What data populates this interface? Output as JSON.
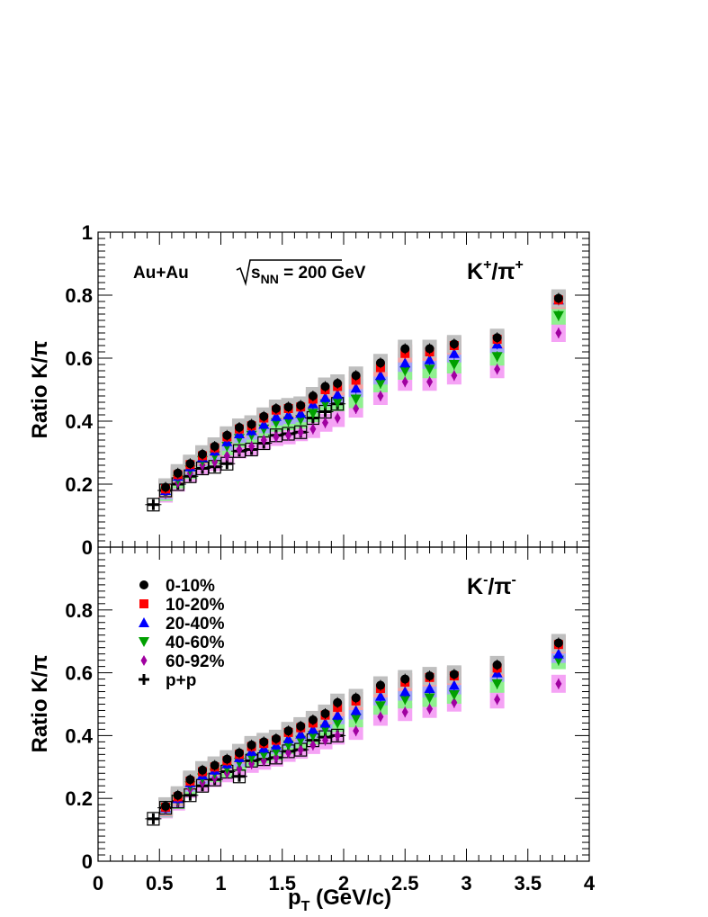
{
  "chart_data": [
    {
      "type": "scatter",
      "panel": "top",
      "ratio_label": {
        "base": "K",
        "sup1": "+",
        "sep": "/π",
        "sup2": "+"
      },
      "system_label": {
        "pre": "Au+Au ",
        "sqrt": "s",
        "sub": "NN",
        "post": " = 200 GeV"
      },
      "ylabel": "Ratio K/π",
      "xlim": [
        0,
        4
      ],
      "ylim": [
        0,
        1
      ],
      "yticks": [
        "0",
        "0.2",
        "0.4",
        "0.6",
        "0.8",
        "1"
      ],
      "x": [
        0.55,
        0.65,
        0.75,
        0.85,
        0.95,
        1.05,
        1.15,
        1.25,
        1.35,
        1.45,
        1.55,
        1.65,
        1.75,
        1.85,
        1.95,
        2.1,
        2.3,
        2.5,
        2.7,
        2.9,
        3.25,
        3.75
      ],
      "series": [
        {
          "name": "0-10%",
          "color": "#000000",
          "marker": "circle",
          "values": [
            0.19,
            0.235,
            0.265,
            0.295,
            0.32,
            0.355,
            0.38,
            0.39,
            0.415,
            0.44,
            0.445,
            0.45,
            0.48,
            0.51,
            0.52,
            0.545,
            0.585,
            0.63,
            0.63,
            0.645,
            0.665,
            0.79
          ]
        },
        {
          "name": "10-20%",
          "color": "#ff0000",
          "marker": "square",
          "values": [
            0.185,
            0.23,
            0.262,
            0.29,
            0.315,
            0.35,
            0.375,
            0.385,
            0.41,
            0.435,
            0.44,
            0.445,
            0.47,
            0.5,
            0.51,
            0.53,
            0.57,
            0.615,
            0.62,
            0.64,
            0.66,
            0.785
          ]
        },
        {
          "name": "20-40%",
          "color": "#0000ff",
          "marker": "triangle-up",
          "values": [
            0.18,
            0.225,
            0.255,
            0.285,
            0.305,
            0.335,
            0.36,
            0.37,
            0.39,
            0.415,
            0.42,
            0.425,
            0.455,
            0.475,
            0.485,
            0.505,
            0.545,
            0.585,
            0.595,
            0.615,
            0.645,
            0.785
          ]
        },
        {
          "name": "40-60%",
          "color": "#00a000",
          "marker": "triangle-down",
          "values": [
            0.175,
            0.215,
            0.245,
            0.275,
            0.29,
            0.32,
            0.345,
            0.355,
            0.375,
            0.395,
            0.4,
            0.405,
            0.425,
            0.455,
            0.46,
            0.47,
            0.52,
            0.56,
            0.565,
            0.58,
            0.605,
            0.735
          ]
        },
        {
          "name": "60-92%",
          "color": "#a000a0",
          "marker": "diamond",
          "values": [
            0.17,
            0.205,
            0.235,
            0.26,
            0.27,
            0.29,
            0.31,
            0.32,
            0.34,
            0.35,
            0.355,
            0.365,
            0.375,
            0.395,
            0.41,
            0.44,
            0.48,
            0.525,
            0.525,
            0.545,
            0.565,
            0.68
          ]
        }
      ],
      "pp": {
        "name": "p+p",
        "x": [
          0.45,
          0.55,
          0.65,
          0.75,
          0.85,
          0.95,
          1.05,
          1.15,
          1.25,
          1.35,
          1.45,
          1.55,
          1.65,
          1.75,
          1.85,
          1.95
        ],
        "values": [
          0.135,
          0.18,
          0.2,
          0.225,
          0.25,
          0.255,
          0.265,
          0.305,
          0.31,
          0.33,
          0.355,
          0.36,
          0.365,
          0.41,
          0.43,
          0.455
        ]
      }
    },
    {
      "type": "scatter",
      "panel": "bottom",
      "ratio_label": {
        "base": "K",
        "sup1": "-",
        "sep": "/π",
        "sup2": "-"
      },
      "ylabel": "Ratio K/π",
      "xlabel": {
        "main": "p",
        "sub": "T",
        "post": " (GeV/c)"
      },
      "xlim": [
        0,
        4
      ],
      "ylim": [
        0,
        1
      ],
      "xticks": [
        "0",
        "0.5",
        "1",
        "1.5",
        "2",
        "2.5",
        "3",
        "3.5",
        "4"
      ],
      "yticks": [
        "0",
        "0.2",
        "0.4",
        "0.6",
        "0.8"
      ],
      "legend": {
        "position": "top-left",
        "entries": [
          "0-10%",
          "10-20%",
          "20-40%",
          "40-60%",
          "60-92%",
          "p+p"
        ]
      },
      "x": [
        0.55,
        0.65,
        0.75,
        0.85,
        0.95,
        1.05,
        1.15,
        1.25,
        1.35,
        1.45,
        1.55,
        1.65,
        1.75,
        1.85,
        1.95,
        2.1,
        2.3,
        2.5,
        2.7,
        2.9,
        3.25,
        3.75
      ],
      "series": [
        {
          "name": "0-10%",
          "color": "#000000",
          "marker": "circle",
          "values": [
            0.175,
            0.21,
            0.26,
            0.29,
            0.305,
            0.325,
            0.345,
            0.37,
            0.38,
            0.39,
            0.415,
            0.43,
            0.45,
            0.47,
            0.505,
            0.52,
            0.56,
            0.58,
            0.59,
            0.595,
            0.625,
            0.695
          ]
        },
        {
          "name": "10-20%",
          "color": "#ff0000",
          "marker": "square",
          "values": [
            0.172,
            0.205,
            0.255,
            0.285,
            0.3,
            0.32,
            0.34,
            0.365,
            0.375,
            0.385,
            0.41,
            0.425,
            0.44,
            0.465,
            0.49,
            0.51,
            0.55,
            0.57,
            0.585,
            0.59,
            0.615,
            0.69
          ]
        },
        {
          "name": "20-40%",
          "color": "#0000ff",
          "marker": "triangle-up",
          "values": [
            0.17,
            0.2,
            0.25,
            0.275,
            0.29,
            0.31,
            0.33,
            0.35,
            0.36,
            0.37,
            0.39,
            0.405,
            0.42,
            0.44,
            0.465,
            0.48,
            0.525,
            0.54,
            0.55,
            0.56,
            0.6,
            0.66
          ]
        },
        {
          "name": "40-60%",
          "color": "#00a000",
          "marker": "triangle-down",
          "values": [
            0.168,
            0.195,
            0.24,
            0.265,
            0.28,
            0.295,
            0.315,
            0.33,
            0.34,
            0.35,
            0.37,
            0.385,
            0.4,
            0.42,
            0.44,
            0.455,
            0.495,
            0.515,
            0.52,
            0.53,
            0.565,
            0.64
          ]
        },
        {
          "name": "60-92%",
          "color": "#a000a0",
          "marker": "diamond",
          "values": [
            0.165,
            0.19,
            0.23,
            0.25,
            0.265,
            0.28,
            0.295,
            0.31,
            0.32,
            0.33,
            0.345,
            0.355,
            0.37,
            0.385,
            0.4,
            0.415,
            0.46,
            0.475,
            0.485,
            0.505,
            0.515,
            0.565
          ]
        }
      ],
      "pp": {
        "name": "p+p",
        "x": [
          0.45,
          0.55,
          0.65,
          0.75,
          0.85,
          0.95,
          1.05,
          1.15,
          1.25,
          1.35,
          1.45,
          1.55,
          1.65,
          1.75,
          1.85,
          1.95
        ],
        "values": [
          0.135,
          0.17,
          0.19,
          0.21,
          0.24,
          0.26,
          0.285,
          0.27,
          0.32,
          0.325,
          0.33,
          0.35,
          0.355,
          0.385,
          0.395,
          0.4
        ]
      }
    }
  ],
  "style": {
    "band_colors": {
      "0-10%": "#bfbfbf",
      "10-20%": "#f4a3a3",
      "20-40%": "#a6a6f5",
      "40-60%": "#8ff08f",
      "60-92%": "#f5a3f5"
    },
    "pp_color": "#000000"
  }
}
